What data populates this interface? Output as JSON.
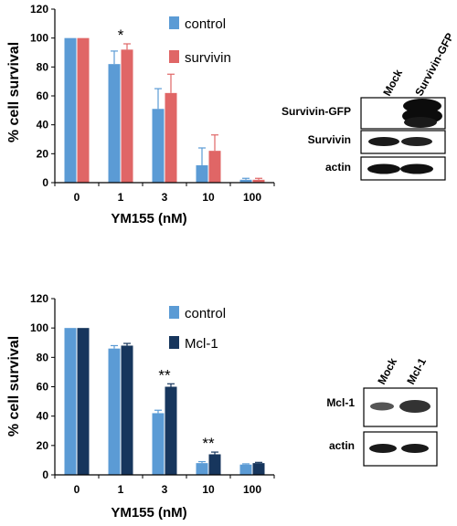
{
  "chart_data": [
    {
      "type": "bar",
      "categories": [
        "0",
        "1",
        "3",
        "10",
        "100"
      ],
      "xlabel": "YM155 (nM)",
      "ylabel": "% cell survival",
      "ylim": [
        0,
        120
      ],
      "yticks": [
        0,
        20,
        40,
        60,
        80,
        100,
        120
      ],
      "series": [
        {
          "name": "control",
          "values": [
            100,
            82,
            51,
            12,
            2
          ],
          "errors": [
            0,
            9,
            14,
            12,
            1
          ],
          "color": "#5b9bd5"
        },
        {
          "name": "survivin",
          "values": [
            100,
            92,
            62,
            22,
            2
          ],
          "errors": [
            0,
            4,
            13,
            11,
            1
          ],
          "color": "#e06666"
        }
      ],
      "annotations": [
        {
          "category": "1",
          "text": "*"
        }
      ],
      "legend_position": "top-right"
    },
    {
      "type": "bar",
      "categories": [
        "0",
        "1",
        "3",
        "10",
        "100"
      ],
      "xlabel": "YM155 (nM)",
      "ylabel": "% cell survival",
      "ylim": [
        0,
        120
      ],
      "yticks": [
        0,
        20,
        40,
        60,
        80,
        100,
        120
      ],
      "series": [
        {
          "name": "control",
          "values": [
            100,
            86,
            42,
            8,
            7
          ],
          "errors": [
            0,
            2,
            2,
            1,
            0.5
          ],
          "color": "#5b9bd5"
        },
        {
          "name": "Mcl-1",
          "values": [
            100,
            88,
            60,
            14,
            8
          ],
          "errors": [
            0,
            1.5,
            2,
            1.5,
            0.5
          ],
          "color": "#17365d"
        }
      ],
      "annotations": [
        {
          "category": "3",
          "text": "**"
        },
        {
          "category": "10",
          "text": "**"
        }
      ],
      "legend_position": "top-right"
    }
  ],
  "blots": [
    {
      "columns": [
        "Mock",
        "Survivin-GFP"
      ],
      "rows": [
        "Survivin-GFP",
        "Survivin",
        "actin"
      ]
    },
    {
      "columns": [
        "Mock",
        "Mcl-1"
      ],
      "rows": [
        "Mcl-1",
        "actin"
      ]
    }
  ]
}
